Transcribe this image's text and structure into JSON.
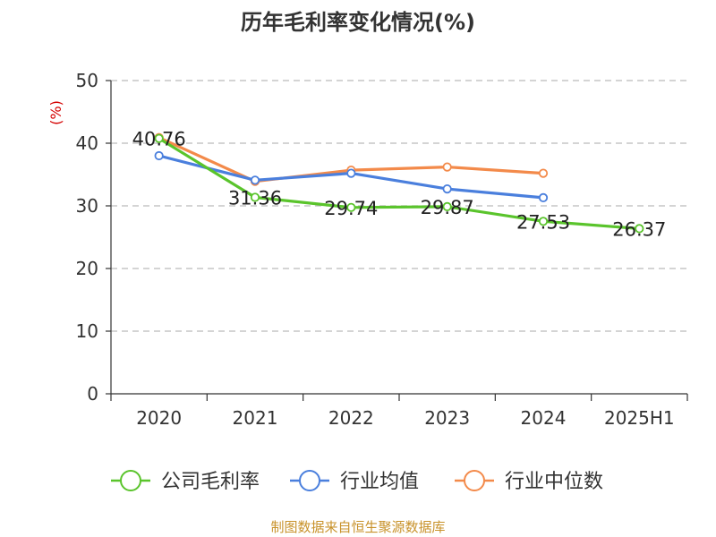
{
  "chart_data": {
    "type": "line",
    "title": "历年毛利率变化情况(%)",
    "ylabel": "(%)",
    "categories": [
      "2020",
      "2021",
      "2022",
      "2023",
      "2024",
      "2025H1"
    ],
    "ylim": [
      0,
      50
    ],
    "yticks": [
      0,
      10,
      20,
      30,
      40,
      50
    ],
    "grid": "horizontal-dashed",
    "legend_position": "bottom",
    "series": [
      {
        "name": "公司毛利率",
        "color": "#5ac42c",
        "values": [
          40.76,
          31.36,
          29.74,
          29.87,
          27.53,
          26.37
        ],
        "labels": [
          "40.76",
          "31.36",
          "29.74",
          "29.87",
          "27.53",
          "26.37"
        ]
      },
      {
        "name": "行业均值",
        "color": "#4a7fdd",
        "values": [
          38.0,
          34.1,
          35.2,
          32.7,
          31.3,
          null
        ]
      },
      {
        "name": "行业中位数",
        "color": "#f38a4a",
        "values": [
          40.9,
          33.9,
          35.7,
          36.2,
          35.2,
          null
        ]
      }
    ]
  },
  "source": "制图数据来自恒生聚源数据库"
}
